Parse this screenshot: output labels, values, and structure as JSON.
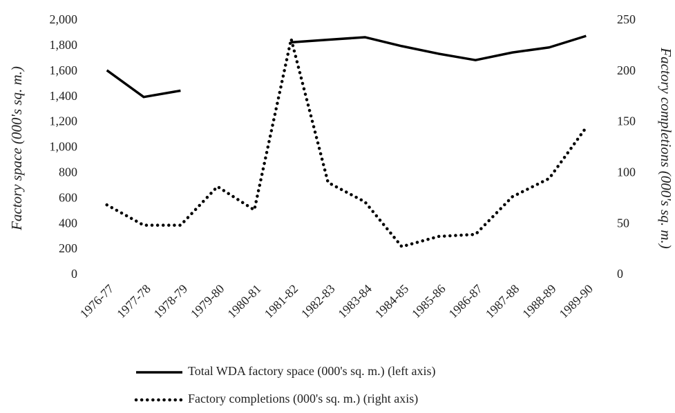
{
  "chart_data": {
    "type": "line",
    "y_label": "Factory space (000's sq. m.)",
    "y2_label": "Factory completions (000's sq. m.)",
    "categories": [
      "1976-77",
      "1977-78",
      "1978-79",
      "1979-80",
      "1980-81",
      "1981-82",
      "1982-83",
      "1983-84",
      "1984-85",
      "1985-86",
      "1986-87",
      "1987-88",
      "1988-89",
      "1989-90"
    ],
    "ylim": [
      0,
      2000
    ],
    "yticks": [
      0,
      200,
      400,
      600,
      800,
      {
        "value": 1000,
        "label": "1,000"
      },
      {
        "value": 1200,
        "label": "1,200"
      },
      {
        "value": 1400,
        "label": "1,400"
      },
      {
        "value": 1600,
        "label": "1,600"
      },
      {
        "value": 1800,
        "label": "1,800"
      },
      {
        "value": 2000,
        "label": "2,000"
      }
    ],
    "y2lim": [
      0,
      250
    ],
    "y2ticks": [
      0,
      50,
      100,
      150,
      200,
      250
    ],
    "grid": false,
    "legend": "bottom",
    "series": [
      {
        "name": "Total WDA factory space (000's sq. m.) (left axis)",
        "color": "#000000",
        "line_style": "solid",
        "values": [
          1610,
          1400,
          1450,
          null,
          null,
          1830,
          1850,
          1870,
          1800,
          1740,
          1690,
          1750,
          1790,
          1880
        ]
      },
      {
        "name": "Factory completions (000's sq. m.) (right axis)",
        "color": "#000000",
        "line_style": "dotted",
        "axis": "y2",
        "values": [
          69,
          49,
          49,
          87,
          64,
          232,
          91,
          72,
          28,
          38,
          40,
          77,
          95,
          145
        ]
      }
    ]
  }
}
